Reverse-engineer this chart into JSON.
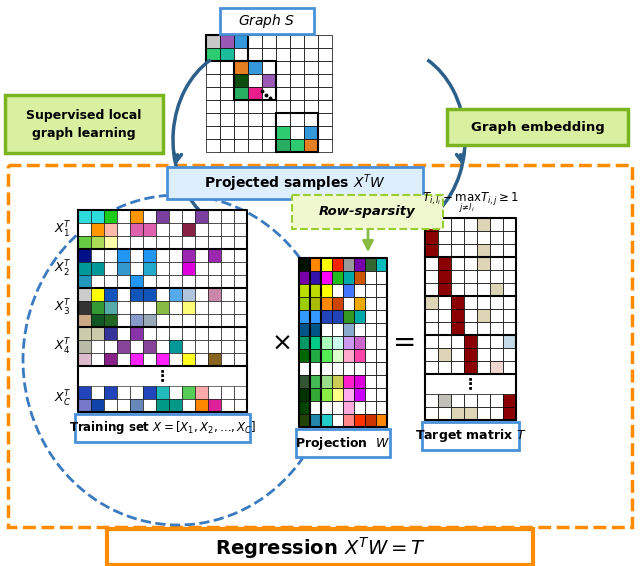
{
  "title": "Regression $X^TW=T$",
  "graph_s_label": "Graph $S$",
  "supervised_label": "Supervised local\ngraph learning",
  "embedding_label": "Graph embedding",
  "projected_label": "Projected samples $X^TW$",
  "training_label": "Training set $X=[X_1,X_2,\\ldots,X_C]$",
  "projection_label": "Projection  $W$",
  "target_label": "Target matrix $T$",
  "row_sparsity_label": "Row-sparsity",
  "constraint_label": "$T_{i,l_i}-\\max_{j\\neq l_i}T_{i,j}\\geq 1$",
  "bg_color": "#ffffff",
  "orange_dashed": "#FF8C00",
  "blue_label_ec": "#4a90d9",
  "blue_label_fc": "#ddeeff",
  "green_box_ec": "#7ab520",
  "green_box_fc": "#d8f0a0",
  "row_sparsity_ec": "#9acd32",
  "row_sparsity_fc": "#f0f8d0",
  "arrow_color": "#2c5f8a",
  "gs_colors": {
    "0,0": "#c8c8c8",
    "0,1": "#9b59b6",
    "0,2": "#3498db",
    "1,0": "#2ecc71",
    "1,1": "#1abc9c",
    "2,2": "#e67e22",
    "2,3": "#3498db",
    "3,2": "#0d4d0d",
    "3,3": "#ffffff",
    "3,4": "#9b59b6",
    "4,2": "#27ae60",
    "4,3": "#e91e8c",
    "7,5": "#2ecc71",
    "7,6": "#ffffff",
    "7,7": "#3498db",
    "8,5": "#27ae60",
    "8,6": "#2ecc71",
    "8,7": "#e67e22"
  },
  "X_training_groups": [
    [
      [
        "#2edcdc",
        "#2edcdc",
        "#1bcc1b",
        "white",
        "#ff9800",
        "white",
        "#7b3fa0",
        "white",
        "white",
        "#7b3fa0",
        "white",
        "white",
        "white"
      ],
      [
        "white",
        "#ff9800",
        "#ffbbaa",
        "white",
        "#e060b0",
        "#e060b0",
        "white",
        "white",
        "#882244",
        "white",
        "white",
        "white",
        "white"
      ],
      [
        "#66cc44",
        "#aadd55",
        "#ffffaa",
        "white",
        "white",
        "white",
        "white",
        "white",
        "white",
        "white",
        "white",
        "white",
        "white"
      ]
    ],
    [
      [
        "#001188",
        "white",
        "white",
        "#2196f3",
        "white",
        "#2196f3",
        "white",
        "white",
        "#9c27b0",
        "white",
        "#9c27b0",
        "white",
        "white"
      ],
      [
        "#009999",
        "#009999",
        "white",
        "#3399cc",
        "white",
        "#22aacc",
        "white",
        "white",
        "#dd00dd",
        "white",
        "white",
        "white",
        "white"
      ],
      [
        "#2299bb",
        "white",
        "white",
        "white",
        "#2196f3",
        "white",
        "white",
        "white",
        "white",
        "white",
        "white",
        "white",
        "white"
      ]
    ],
    [
      [
        "#cccccc",
        "#ffff00",
        "#1155bb",
        "white",
        "#1155bb",
        "#1155bb",
        "white",
        "#55aaee",
        "#b0c4de",
        "white",
        "#cc88aa",
        "white",
        "white"
      ],
      [
        "#333333",
        "#339933",
        "#55aaaa",
        "white",
        "white",
        "white",
        "#88bb44",
        "white",
        "#ffff77",
        "white",
        "white",
        "white",
        "white"
      ],
      [
        "#ccaa88",
        "#115522",
        "#226622",
        "white",
        "#8899cc",
        "#99aabb",
        "white",
        "white",
        "white",
        "white",
        "white",
        "white",
        "white"
      ]
    ],
    [
      [
        "#ccccaa",
        "#ccccaa",
        "#333399",
        "white",
        "#8833aa",
        "white",
        "white",
        "white",
        "white",
        "white",
        "white",
        "white",
        "white"
      ],
      [
        "#bbbbaa",
        "white",
        "white",
        "#884499",
        "white",
        "#884499",
        "white",
        "#009999",
        "white",
        "white",
        "white",
        "white",
        "white"
      ],
      [
        "#ddbbcc",
        "white",
        "#882288",
        "white",
        "#ff22ff",
        "white",
        "#ff22ff",
        "white",
        "#ffff22",
        "white",
        "#886622",
        "white",
        "white"
      ]
    ],
    [
      [
        "#2244bb",
        "white",
        "#2244bb",
        "white",
        "white",
        "#2244bb",
        "#22bbbb",
        "white",
        "#55cc55",
        "#ffaaaa",
        "white",
        "white",
        "white"
      ],
      [
        "#7777cc",
        "#1144aa",
        "white",
        "white",
        "#6688bb",
        "white",
        "#009988",
        "#009988",
        "white",
        "#ff8800",
        "#dd2299",
        "white",
        "white"
      ]
    ]
  ],
  "W_colors": [
    [
      "#001100",
      "#ff8800",
      "#ffff00",
      "#ff2200",
      "#999999",
      "#7700aa",
      "#336633",
      "#00bbbb"
    ],
    [
      "#7700aa",
      "#3311aa",
      "#ff00ff",
      "#22bb22",
      "#00aaaa",
      "#cc5500",
      "white",
      "white"
    ],
    [
      "#bbdd00",
      "#bbdd00",
      "#ffff00",
      "white",
      "#4477ff",
      "white",
      "white",
      "white"
    ],
    [
      "#9bcd00",
      "#aabb00",
      "#ff8800",
      "#cc4400",
      "white",
      "#eeaa00",
      "white",
      "white"
    ],
    [
      "#3399ff",
      "#3399ff",
      "#2244bb",
      "#2244bb",
      "#339922",
      "#00aaaa",
      "white",
      "white"
    ],
    [
      "#005588",
      "#005588",
      "white",
      "white",
      "#88aacc",
      "white",
      "white",
      "white"
    ],
    [
      "#009966",
      "#00cc88",
      "#aaffbb",
      "#ccffee",
      "#cc99ee",
      "#cc66cc",
      "white",
      "white"
    ],
    [
      "#006600",
      "#22aa44",
      "#55ee55",
      "#ddffcc",
      "#ffaacc",
      "#ff44aa",
      "white",
      "white"
    ],
    [
      "white",
      "white",
      "white",
      "white",
      "white",
      "white",
      "white",
      "white"
    ],
    [
      "#335533",
      "#44bb55",
      "#99dd88",
      "#cccc55",
      "#ff22cc",
      "#dd00dd",
      "white",
      "white"
    ],
    [
      "#003300",
      "#33aa33",
      "#88ee44",
      "#ffff88",
      "#ffaaee",
      "#cc00ff",
      "white",
      "white"
    ],
    [
      "#004400",
      "white",
      "white",
      "white",
      "#ffaadd",
      "white",
      "white",
      "white"
    ],
    [
      "#224400",
      "#2288aa",
      "#22cccc",
      "white",
      "#ff8888",
      "#ff3300",
      "#cc3300",
      "#ff8800"
    ]
  ],
  "dark_red": "#8b0000",
  "light_beige": "#ddd5b5",
  "light_blue_t": "#c5dce8",
  "light_pink": "#f0d8d0",
  "light_gray": "#c0c0b8"
}
